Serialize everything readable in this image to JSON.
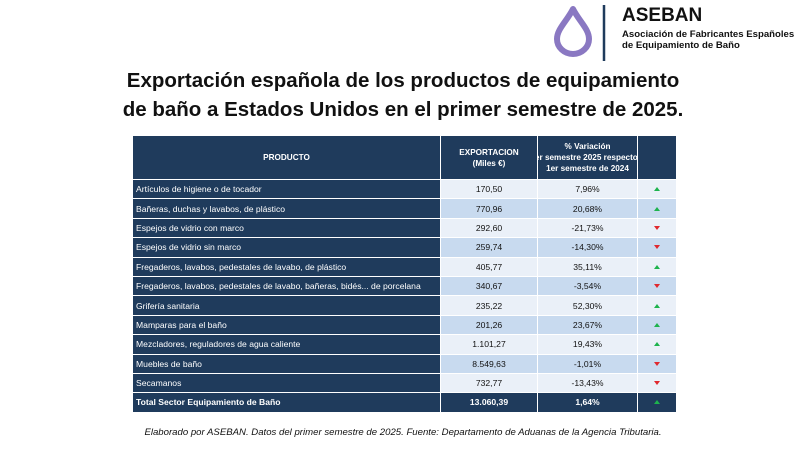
{
  "logo": {
    "name": "ASEBAN",
    "subtitle_lines": [
      "Asociación de Fabricantes Españoles",
      "de Equipamiento de Baño"
    ]
  },
  "title_lines": [
    "Exportación española de los productos de equipamiento",
    "de baño a Estados Unidos en el primer semestre de 2025."
  ],
  "table": {
    "columns": [
      [
        "PRODUCTO"
      ],
      [
        "EXPORTACION",
        "(Miles €)"
      ],
      [
        "% Variación",
        "1er semestre 2025 respecto a",
        "1er semestre de 2024"
      ]
    ],
    "rows": [
      [
        "Artículos de higiene o de tocador",
        "170,50",
        "7,96%"
      ],
      [
        "Bañeras, duchas y lavabos, de plástico",
        "770,96",
        "20,68%"
      ],
      [
        "Espejos de vidrio con marco",
        "292,60",
        "-21,73%"
      ],
      [
        "Espejos de vidrio sin marco",
        "259,74",
        "-14,30%"
      ],
      [
        "Fregaderos, lavabos, pedestales de lavabo, de plástico",
        "405,77",
        "35,11%"
      ],
      [
        "Fregaderos, lavabos, pedestales de lavabo, bañeras, bidés... de porcelana",
        "340,67",
        "-3,54%"
      ],
      [
        "Grifería sanitaria",
        "235,22",
        "52,30%"
      ],
      [
        "Mamparas para el baño",
        "201,26",
        "23,67%"
      ],
      [
        "Mezcladores, reguladores de agua caliente",
        "1.101,27",
        "19,43%"
      ],
      [
        "Muebles de baño",
        "8.549,63",
        "-1,01%"
      ],
      [
        "Secamanos",
        "732,77",
        "-13,43%"
      ]
    ],
    "total": [
      "Total Sector Equipamiento de Baño",
      "13.060,39",
      "1,64%"
    ]
  },
  "footnote": "Elaborado por ASEBAN. Datos del primer semestre de 2025. Fuente: Departamento de Aduanas de la Agencia Tributaria."
}
